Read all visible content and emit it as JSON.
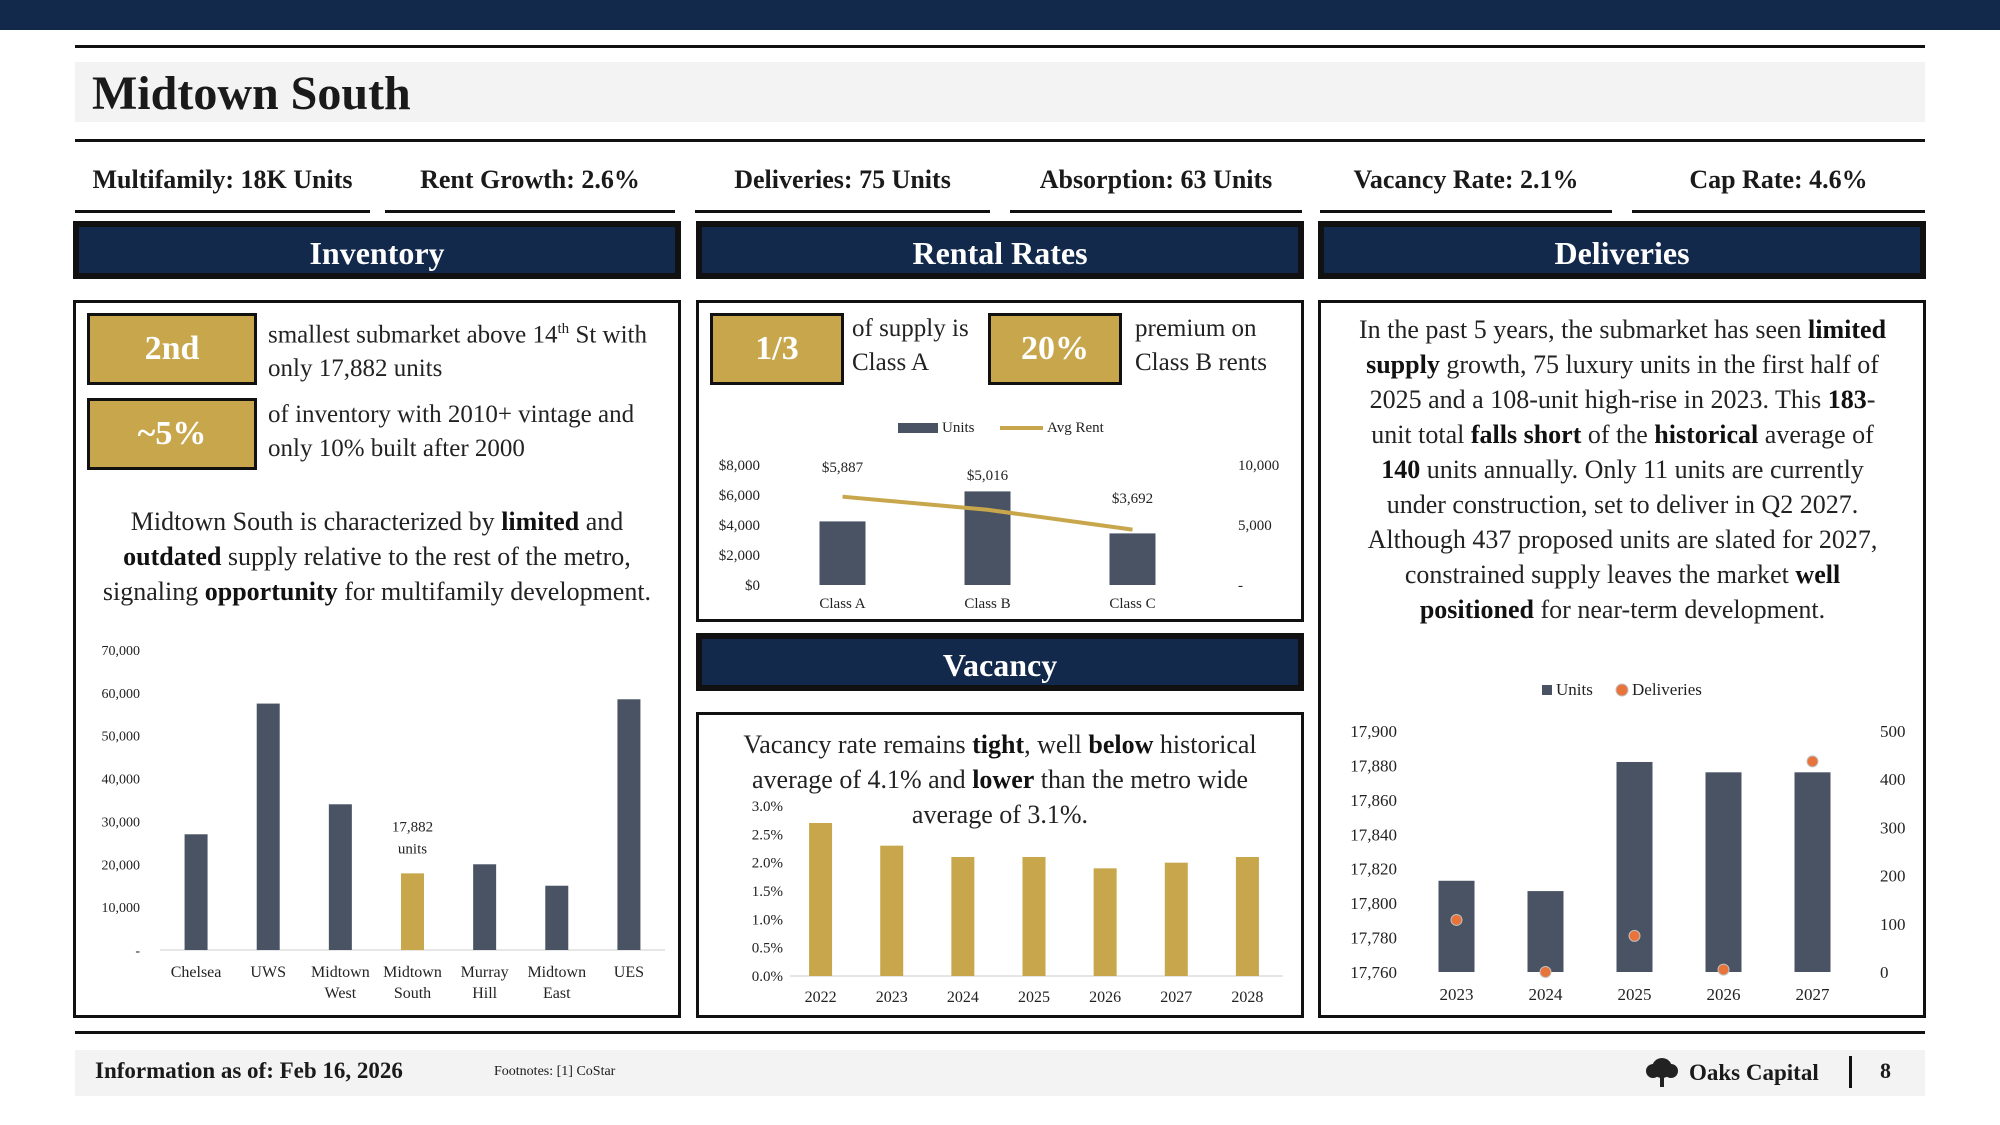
{
  "title": "Midtown South",
  "kpis": [
    {
      "label": "Multifamily: 18K Units"
    },
    {
      "label": "Rent Growth: 2.6%"
    },
    {
      "label": "Deliveries: 75 Units"
    },
    {
      "label": "Absorption: 63 Units"
    },
    {
      "label": "Vacancy Rate: 2.1%"
    },
    {
      "label": "Cap Rate: 4.6%"
    }
  ],
  "sections": {
    "inventory": "Inventory",
    "rental": "Rental Rates",
    "deliveries": "Deliveries",
    "vacancy": "Vacancy"
  },
  "inventory": {
    "badge1": "2nd",
    "text1_pre": "smallest submarket above 14",
    "text1_sup": "th",
    "text1_post": " St with only 17,882 units",
    "badge2": "~5%",
    "text2": "of inventory with 2010+ vintage and only 10% built after 2000",
    "para": {
      "p1": "Midtown South is characterized by ",
      "b1": "limited",
      "p2": " and ",
      "b2": "outdated",
      "p3": " supply relative to the rest of the metro, signaling ",
      "b3": "opportunity",
      "p4": " for multifamily development."
    }
  },
  "rental": {
    "badge1": "1/3",
    "text1": "of supply is Class A",
    "badge2": "20%",
    "text2": "premium on Class B rents"
  },
  "deliveries": {
    "para": {
      "p1": "In the past 5 years, the submarket has seen ",
      "b1": "limited supply",
      "p2": " growth, 75 luxury units in the first half of 2025 and a 108-unit high-rise in 2023. This ",
      "b2": "183",
      "p3": "-unit total ",
      "b3": "falls short",
      "p4": " of the ",
      "b4": "historical",
      "p5": " average of ",
      "b5": "140",
      "p6": " units annually. Only 11 units are currently under construction, set to deliver in Q2 2027. Although 437 proposed units are slated for 2027, constrained supply leaves the market ",
      "b6": "well positioned",
      "p7": " for near-term development."
    }
  },
  "vacancy": {
    "para": {
      "p1": "Vacancy rate remains ",
      "b1": "tight",
      "p2": ", well ",
      "b2": "below",
      "p3": " historical average of 4.1% and ",
      "b3": "lower",
      "p4": " than the metro wide average of 3.1%."
    }
  },
  "footer": {
    "info": "Information as of: Feb 16, 2026",
    "footnote": "Footnotes: [1] CoStar",
    "brand": "Oaks Capital",
    "page": "8"
  },
  "colors": {
    "navy": "#13294b",
    "gold": "#c8a64b",
    "slate": "#4a5363",
    "orange": "#e8743b"
  },
  "chart_data": [
    {
      "id": "inventory",
      "type": "bar",
      "categories": [
        "Chelsea",
        "UWS",
        "Midtown West",
        "Midtown South",
        "Murray Hill",
        "Midtown East",
        "UES"
      ],
      "values": [
        27000,
        57500,
        34000,
        17882,
        20000,
        15000,
        58500
      ],
      "highlight": "Midtown South",
      "annotation": "17,882 units",
      "ylim": [
        0,
        70000
      ],
      "yticks": [
        "-",
        "10,000",
        "20,000",
        "30,000",
        "40,000",
        "50,000",
        "60,000",
        "70,000"
      ]
    },
    {
      "id": "rental",
      "type": "bar+line",
      "categories": [
        "Class A",
        "Class B",
        "Class C"
      ],
      "series": [
        {
          "name": "Units",
          "values": [
            5300,
            7800,
            4300
          ],
          "axis": "right"
        },
        {
          "name": "Avg Rent",
          "values": [
            5887,
            5016,
            3692
          ],
          "axis": "left"
        }
      ],
      "data_labels": [
        "$5,887",
        "$5,016",
        "$3,692"
      ],
      "ylim_left": [
        0,
        8000
      ],
      "yticks_left": [
        "$0",
        "$2,000",
        "$4,000",
        "$6,000",
        "$8,000"
      ],
      "ylim_right": [
        0,
        10000
      ],
      "yticks_right": [
        "-",
        "5,000",
        "10,000"
      ],
      "legend": "top"
    },
    {
      "id": "vacancy",
      "type": "bar",
      "categories": [
        "2022",
        "2023",
        "2024",
        "2025",
        "2026",
        "2027",
        "2028"
      ],
      "values": [
        2.7,
        2.3,
        2.1,
        2.1,
        1.9,
        2.0,
        2.1
      ],
      "ylim": [
        0,
        3.0
      ],
      "yticks": [
        "0.0%",
        "0.5%",
        "1.0%",
        "1.5%",
        "2.0%",
        "2.5%",
        "3.0%"
      ]
    },
    {
      "id": "deliveries",
      "type": "bar+scatter",
      "categories": [
        "2023",
        "2024",
        "2025",
        "2026",
        "2027"
      ],
      "series": [
        {
          "name": "Units",
          "values": [
            17813,
            17807,
            17882,
            17876,
            17876
          ],
          "axis": "left"
        },
        {
          "name": "Deliveries",
          "values": [
            108,
            0,
            75,
            5,
            437
          ],
          "axis": "right"
        }
      ],
      "ylim_left": [
        17760,
        17900
      ],
      "yticks_left": [
        "17,760",
        "17,780",
        "17,800",
        "17,820",
        "17,840",
        "17,860",
        "17,880",
        "17,900"
      ],
      "ylim_right": [
        0,
        500
      ],
      "yticks_right": [
        "0",
        "100",
        "200",
        "300",
        "400",
        "500"
      ],
      "legend": "top"
    }
  ]
}
